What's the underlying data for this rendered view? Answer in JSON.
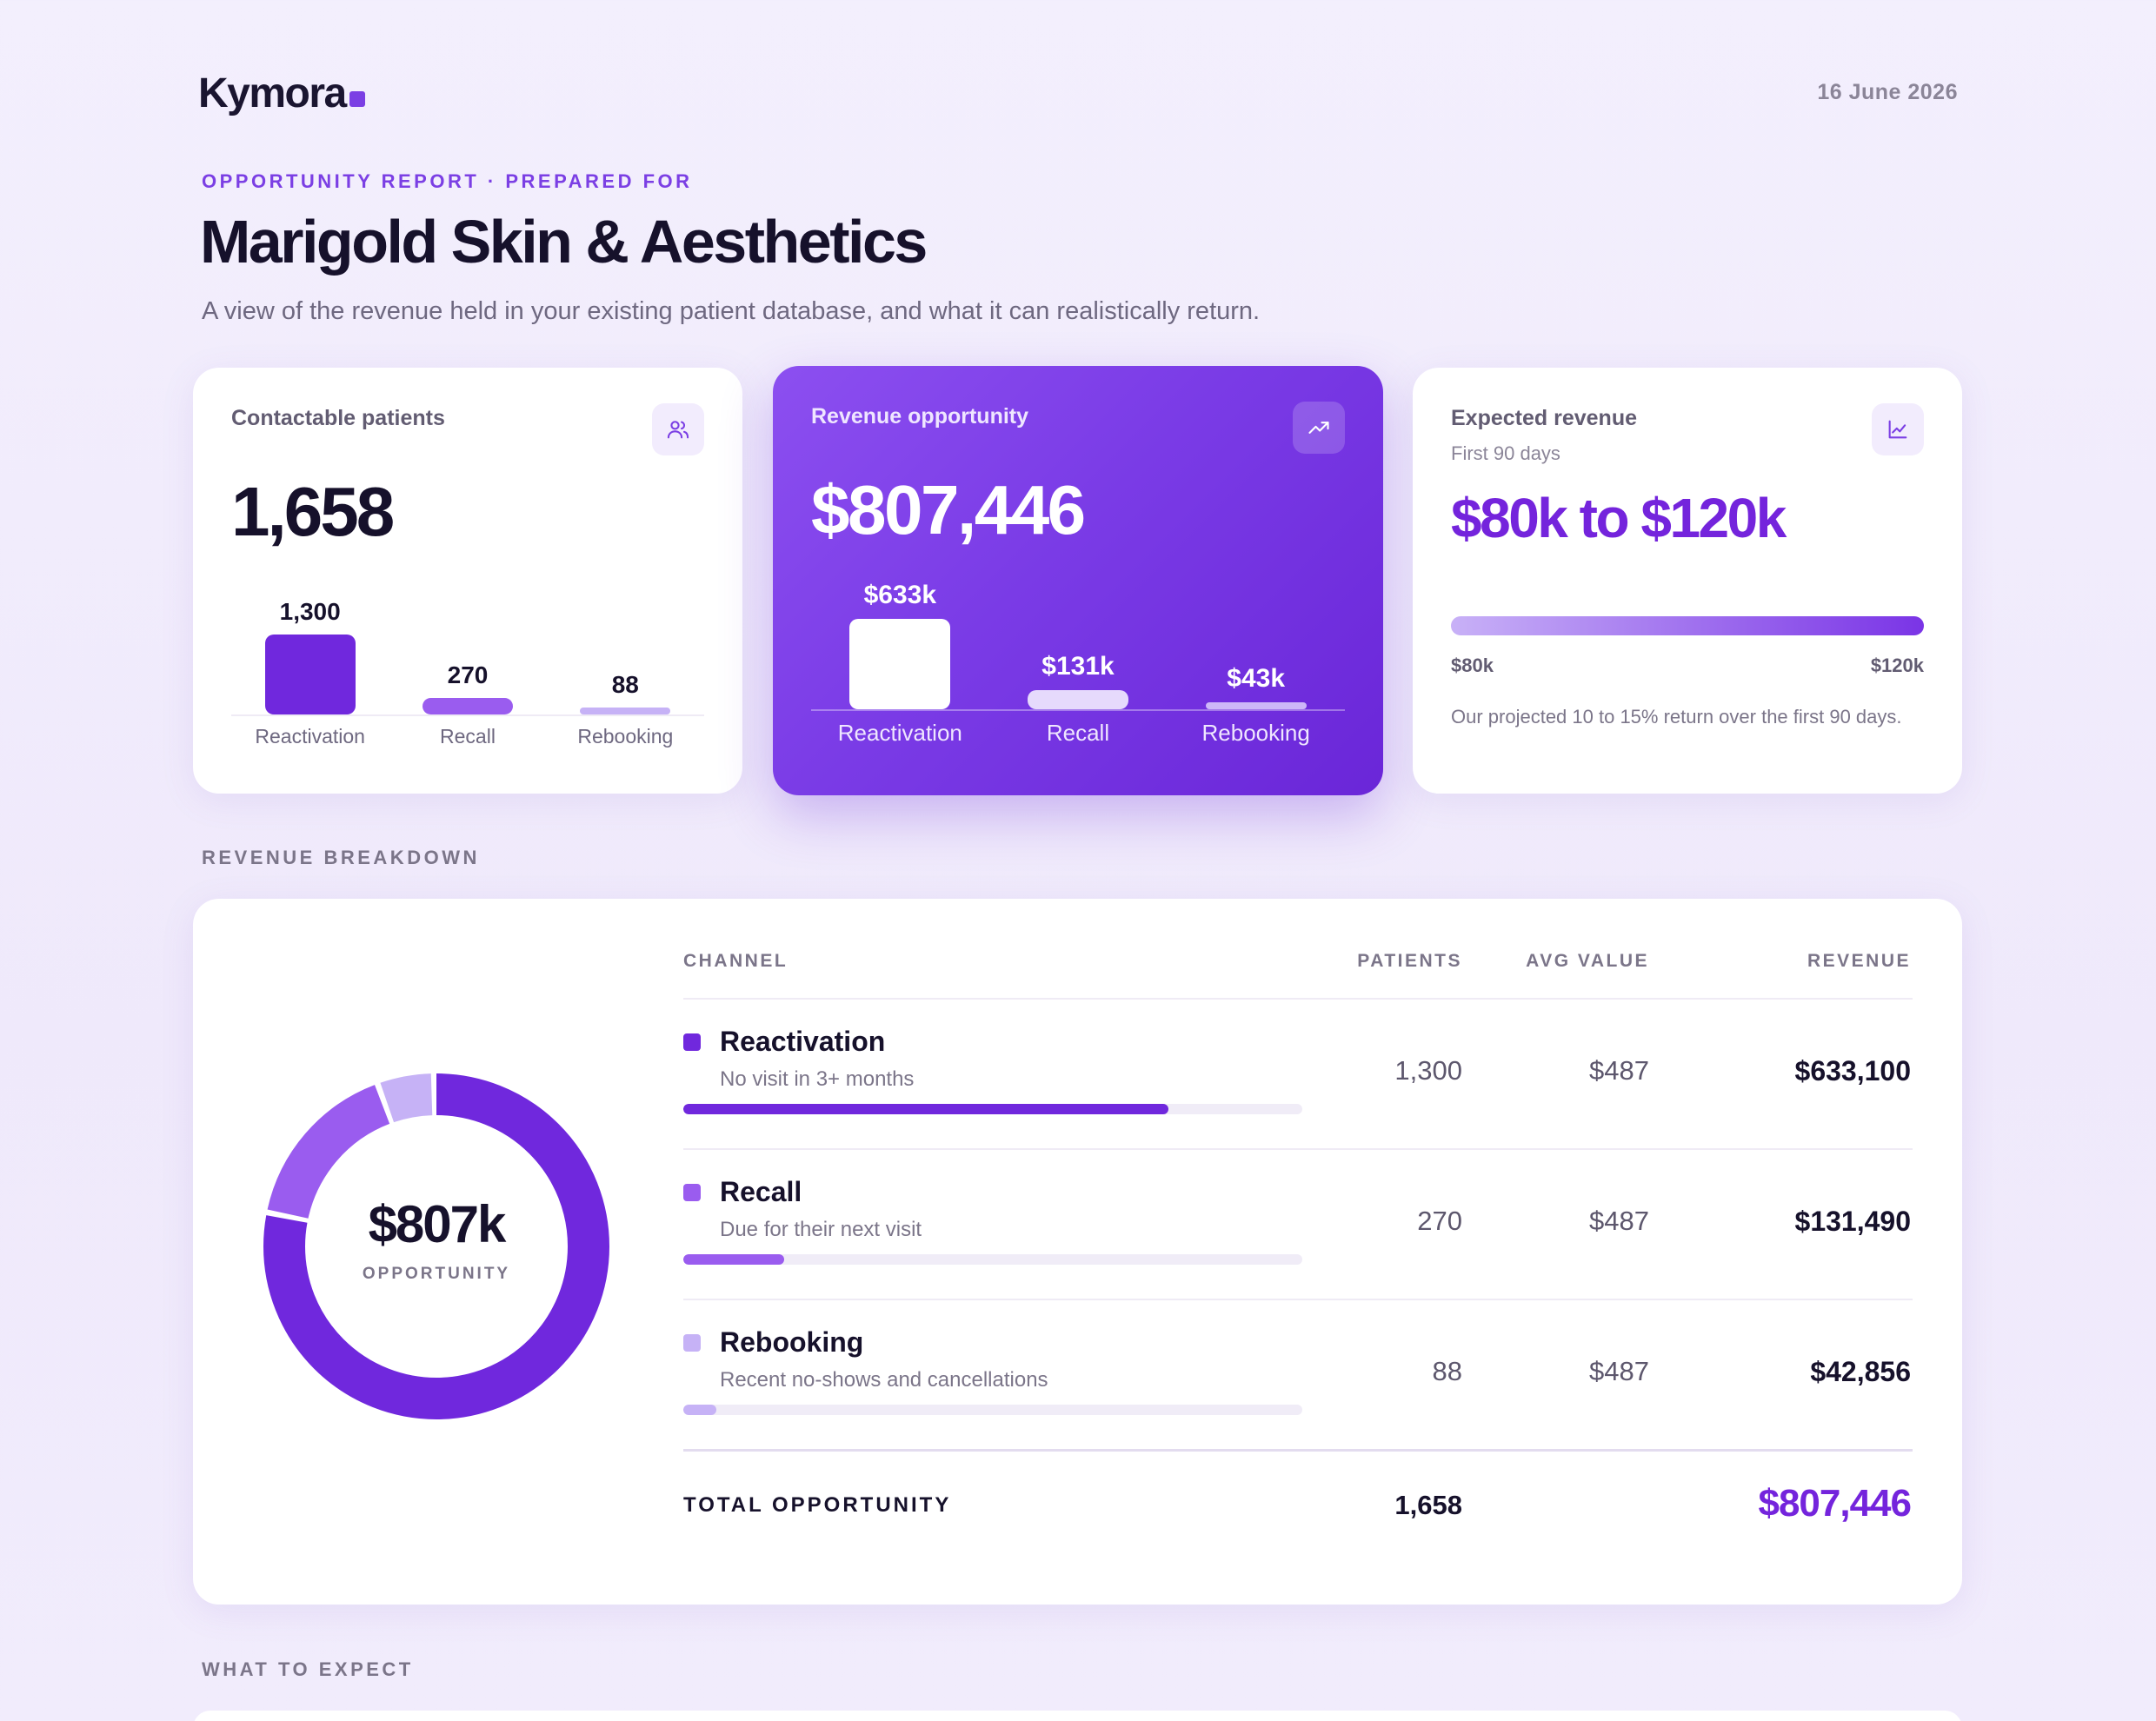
{
  "brand": {
    "name": "Kymora",
    "accent": "#7b3fe4"
  },
  "date": "16 June 2026",
  "header": {
    "eyebrow": "OPPORTUNITY REPORT · PREPARED FOR",
    "title": "Marigold Skin & Aesthetics",
    "subtitle": "A view of the revenue held in your existing patient database, and what it can realistically return."
  },
  "cards": {
    "contactable": {
      "label": "Contactable patients",
      "icon": "users-icon",
      "value": "1,658",
      "bars": [
        {
          "label": "Reactivation",
          "value": 1300,
          "display": "1,300",
          "color": "#7028dd"
        },
        {
          "label": "Recall",
          "value": 270,
          "display": "270",
          "color": "#9a5cef"
        },
        {
          "label": "Rebooking",
          "value": 88,
          "display": "88",
          "color": "#c6b2f6"
        }
      ]
    },
    "revenue": {
      "label": "Revenue opportunity",
      "icon": "trending-up-icon",
      "value": "$807,446",
      "bars": [
        {
          "label": "Reactivation",
          "value": 633100,
          "display": "$633k",
          "color": "#ffffff"
        },
        {
          "label": "Recall",
          "value": 131490,
          "display": "$131k",
          "color": "#e6dafc"
        },
        {
          "label": "Rebooking",
          "value": 42856,
          "display": "$43k",
          "color": "#cdb7f8"
        }
      ]
    },
    "expected": {
      "label": "Expected revenue",
      "icon": "line-chart-icon",
      "sublabel": "First 90 days",
      "value": "$80k to $120k",
      "low": "$80k",
      "high": "$120k",
      "note": "Our projected 10 to 15% return over the first 90 days."
    }
  },
  "breakdown": {
    "section_label": "REVENUE BREAKDOWN",
    "donut_value": "$807k",
    "donut_label": "OPPORTUNITY",
    "columns": {
      "channel": "CHANNEL",
      "patients": "PATIENTS",
      "avg": "AVG VALUE",
      "revenue": "REVENUE"
    },
    "rows": [
      {
        "name": "Reactivation",
        "desc": "No visit in 3+ months",
        "patients": "1,300",
        "avg": "$487",
        "revenue": "$633,100",
        "share": 0.784,
        "color": "#7028dd"
      },
      {
        "name": "Recall",
        "desc": "Due for their next visit",
        "patients": "270",
        "avg": "$487",
        "revenue": "$131,490",
        "share": 0.163,
        "color": "#9a5cef"
      },
      {
        "name": "Rebooking",
        "desc": "Recent no-shows and cancellations",
        "patients": "88",
        "avg": "$487",
        "revenue": "$42,856",
        "share": 0.053,
        "color": "#c6b2f6"
      }
    ],
    "total_label": "TOTAL OPPORTUNITY",
    "total_patients": "1,658",
    "total_revenue": "$807,446"
  },
  "expect": {
    "section_label": "WHAT TO EXPECT"
  }
}
